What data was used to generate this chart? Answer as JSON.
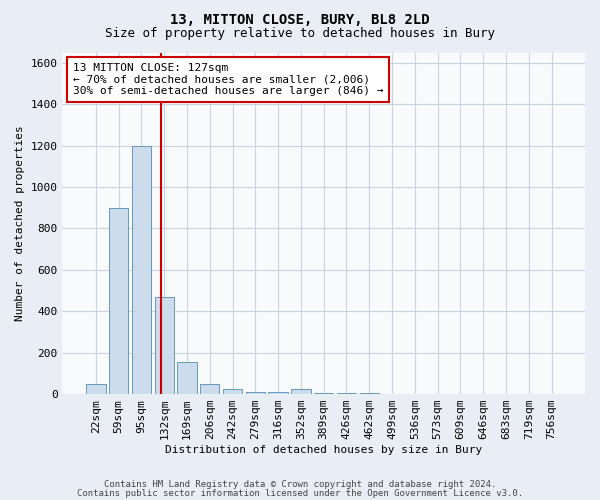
{
  "title1": "13, MITTON CLOSE, BURY, BL8 2LD",
  "title2": "Size of property relative to detached houses in Bury",
  "xlabel": "Distribution of detached houses by size in Bury",
  "ylabel": "Number of detached properties",
  "categories": [
    "22sqm",
    "59sqm",
    "95sqm",
    "132sqm",
    "169sqm",
    "206sqm",
    "242sqm",
    "279sqm",
    "316sqm",
    "352sqm",
    "389sqm",
    "426sqm",
    "462sqm",
    "499sqm",
    "536sqm",
    "573sqm",
    "609sqm",
    "646sqm",
    "683sqm",
    "719sqm",
    "756sqm"
  ],
  "values": [
    50,
    900,
    1200,
    470,
    155,
    50,
    25,
    12,
    12,
    25,
    5,
    5,
    5,
    0,
    0,
    0,
    0,
    0,
    0,
    0,
    0
  ],
  "bar_color": "#ccdcec",
  "bar_edge_color": "#6699bb",
  "vline_color": "#cc0000",
  "annotation_line1": "13 MITTON CLOSE: 127sqm",
  "annotation_line2": "← 70% of detached houses are smaller (2,006)",
  "annotation_line3": "30% of semi-detached houses are larger (846) →",
  "annotation_box_facecolor": "#ffffff",
  "annotation_box_edgecolor": "#cc0000",
  "ylim": [
    0,
    1650
  ],
  "yticks": [
    0,
    200,
    400,
    600,
    800,
    1000,
    1200,
    1400,
    1600
  ],
  "footer1": "Contains HM Land Registry data © Crown copyright and database right 2024.",
  "footer2": "Contains public sector information licensed under the Open Government Licence v3.0.",
  "bg_color": "#e8eef4",
  "plot_bg_color": "#f8fafc",
  "grid_color": "#c8d4e0",
  "title1_fontsize": 10,
  "title2_fontsize": 9,
  "xlabel_fontsize": 8,
  "ylabel_fontsize": 8,
  "tick_fontsize": 8,
  "annot_fontsize": 8,
  "footer_fontsize": 6.5
}
